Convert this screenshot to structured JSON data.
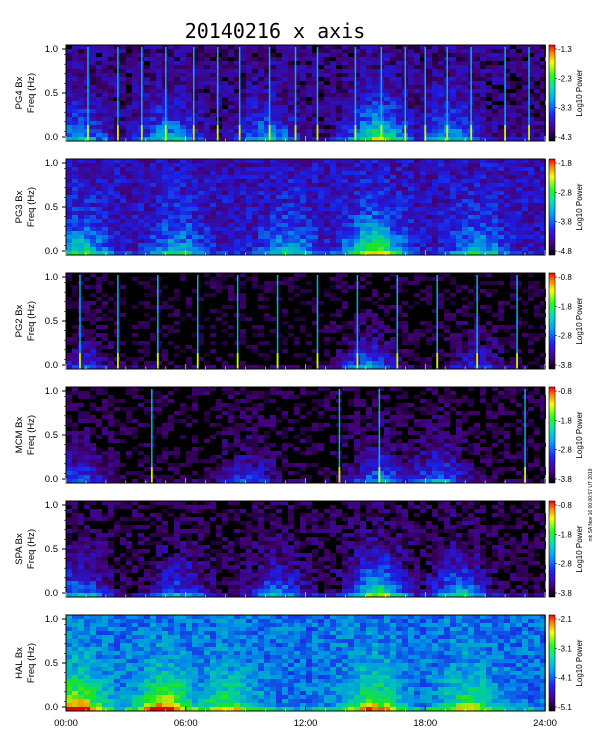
{
  "chart_data": {
    "type": "heatmap",
    "title": "20140216 x axis",
    "credit": "mk SA Nov 16 00:00:57 UT 2019",
    "xlim": [
      0,
      24
    ],
    "xticks": [
      {
        "value": 0,
        "label": "00:00"
      },
      {
        "value": 6,
        "label": "06:00"
      },
      {
        "value": 12,
        "label": "12:00"
      },
      {
        "value": 18,
        "label": "18:00"
      },
      {
        "value": 24,
        "label": "24:00"
      }
    ],
    "panels": [
      {
        "station": "PG4 Bx",
        "ylabel": "Freq (Hz)",
        "ylim": [
          0,
          1.0
        ],
        "yticks": [
          "0.0",
          "0.5",
          "1.0"
        ],
        "colorbar": {
          "label": "Log10 Power",
          "ticks": [
            "-1.3",
            "-2.3",
            "-3.3",
            "-4.3"
          ],
          "range": [
            -4.3,
            -1.3
          ]
        },
        "background_level": 0.12,
        "low_freq_band": 0.05,
        "spikes_hours": [
          1.1,
          2.6,
          3.8,
          5.0,
          6.4,
          7.6,
          8.7,
          10.2,
          11.5,
          12.6,
          14.5,
          15.8,
          17.0,
          18.0,
          19.1,
          20.3,
          22.0,
          23.2
        ],
        "activity": [
          {
            "hour": 0.5,
            "level": 0.55
          },
          {
            "hour": 5.0,
            "level": 0.6
          },
          {
            "hour": 10.0,
            "level": 0.55
          },
          {
            "hour": 15.5,
            "level": 0.95
          },
          {
            "hour": 19.0,
            "level": 0.6
          }
        ]
      },
      {
        "station": "PG3 Bx",
        "ylabel": "Freq (Hz)",
        "ylim": [
          0,
          1.0
        ],
        "yticks": [
          "0.0",
          "0.5",
          "1.0"
        ],
        "colorbar": {
          "label": "Log10 Power",
          "ticks": [
            "-1.8",
            "-2.8",
            "-3.8",
            "-4.8"
          ],
          "range": [
            -4.8,
            -1.8
          ]
        },
        "background_level": 0.2,
        "low_freq_band": 0.07,
        "spikes_hours": [],
        "activity": [
          {
            "hour": 0.6,
            "level": 0.6
          },
          {
            "hour": 5.5,
            "level": 0.5
          },
          {
            "hour": 11.0,
            "level": 0.5
          },
          {
            "hour": 15.3,
            "level": 0.95
          },
          {
            "hour": 20.5,
            "level": 0.5
          }
        ]
      },
      {
        "station": "PG2 Bx",
        "ylabel": "Freq (Hz)",
        "ylim": [
          0,
          1.0
        ],
        "yticks": [
          "0.0",
          "0.5",
          "1.0"
        ],
        "colorbar": {
          "label": "Log10 Power",
          "ticks": [
            "-0.8",
            "-1.8",
            "-2.8",
            "-3.8"
          ],
          "range": [
            -3.8,
            -0.8
          ]
        },
        "background_level": 0.02,
        "low_freq_band": 0.06,
        "spikes_hours": [
          0.7,
          2.6,
          4.6,
          6.6,
          8.6,
          10.6,
          12.6,
          14.6,
          16.6,
          18.6,
          20.6,
          22.6
        ],
        "activity": [
          {
            "hour": 0.7,
            "level": 0.4
          },
          {
            "hour": 15.0,
            "level": 0.6
          },
          {
            "hour": 20.5,
            "level": 0.4
          }
        ]
      },
      {
        "station": "MCM Bx",
        "ylabel": "Freq (Hz)",
        "ylim": [
          0,
          1.0
        ],
        "yticks": [
          "0.0",
          "0.5",
          "1.0"
        ],
        "colorbar": {
          "label": "Log10 Power",
          "ticks": [
            "-0.8",
            "-1.8",
            "-2.8",
            "-3.8"
          ],
          "range": [
            -3.8,
            -0.8
          ]
        },
        "background_level": 0.04,
        "low_freq_band": 0.04,
        "spikes_hours": [
          4.3,
          13.7,
          15.7,
          23.0
        ],
        "activity": [
          {
            "hour": 0.4,
            "level": 0.5
          },
          {
            "hour": 9.0,
            "level": 0.4
          },
          {
            "hour": 15.6,
            "level": 0.6
          },
          {
            "hour": 18.5,
            "level": 0.6
          }
        ]
      },
      {
        "station": "SPA Bx",
        "ylabel": "Freq (Hz)",
        "ylim": [
          0,
          1.0
        ],
        "yticks": [
          "0.0",
          "0.5",
          "1.0"
        ],
        "colorbar": {
          "label": "Log10 Power",
          "ticks": [
            "-0.8",
            "-1.8",
            "-2.8",
            "-3.8"
          ],
          "range": [
            -3.8,
            -0.8
          ]
        },
        "background_level": 0.06,
        "low_freq_band": 0.08,
        "spikes_hours": [],
        "activity": [
          {
            "hour": 0.5,
            "level": 0.6
          },
          {
            "hour": 5.5,
            "level": 0.5
          },
          {
            "hour": 10.5,
            "level": 0.55
          },
          {
            "hour": 15.5,
            "level": 1.0
          },
          {
            "hour": 19.5,
            "level": 0.7
          }
        ]
      },
      {
        "station": "HAL Bx",
        "ylabel": "Freq (Hz)",
        "ylim": [
          0,
          1.0
        ],
        "yticks": [
          "0.0",
          "0.5",
          "1.0"
        ],
        "colorbar": {
          "label": "Log10 Power",
          "ticks": [
            "-2.1",
            "-3.1",
            "-4.1",
            "-5.1"
          ],
          "range": [
            -5.1,
            -2.1
          ]
        },
        "background_level": 0.38,
        "low_freq_band": 0.12,
        "spikes_hours": [],
        "activity": [
          {
            "hour": 0.4,
            "level": 0.9
          },
          {
            "hour": 4.8,
            "level": 0.85
          },
          {
            "hour": 8.0,
            "level": 0.55
          },
          {
            "hour": 15.3,
            "level": 0.7
          },
          {
            "hour": 20.0,
            "level": 0.55
          }
        ]
      }
    ]
  }
}
